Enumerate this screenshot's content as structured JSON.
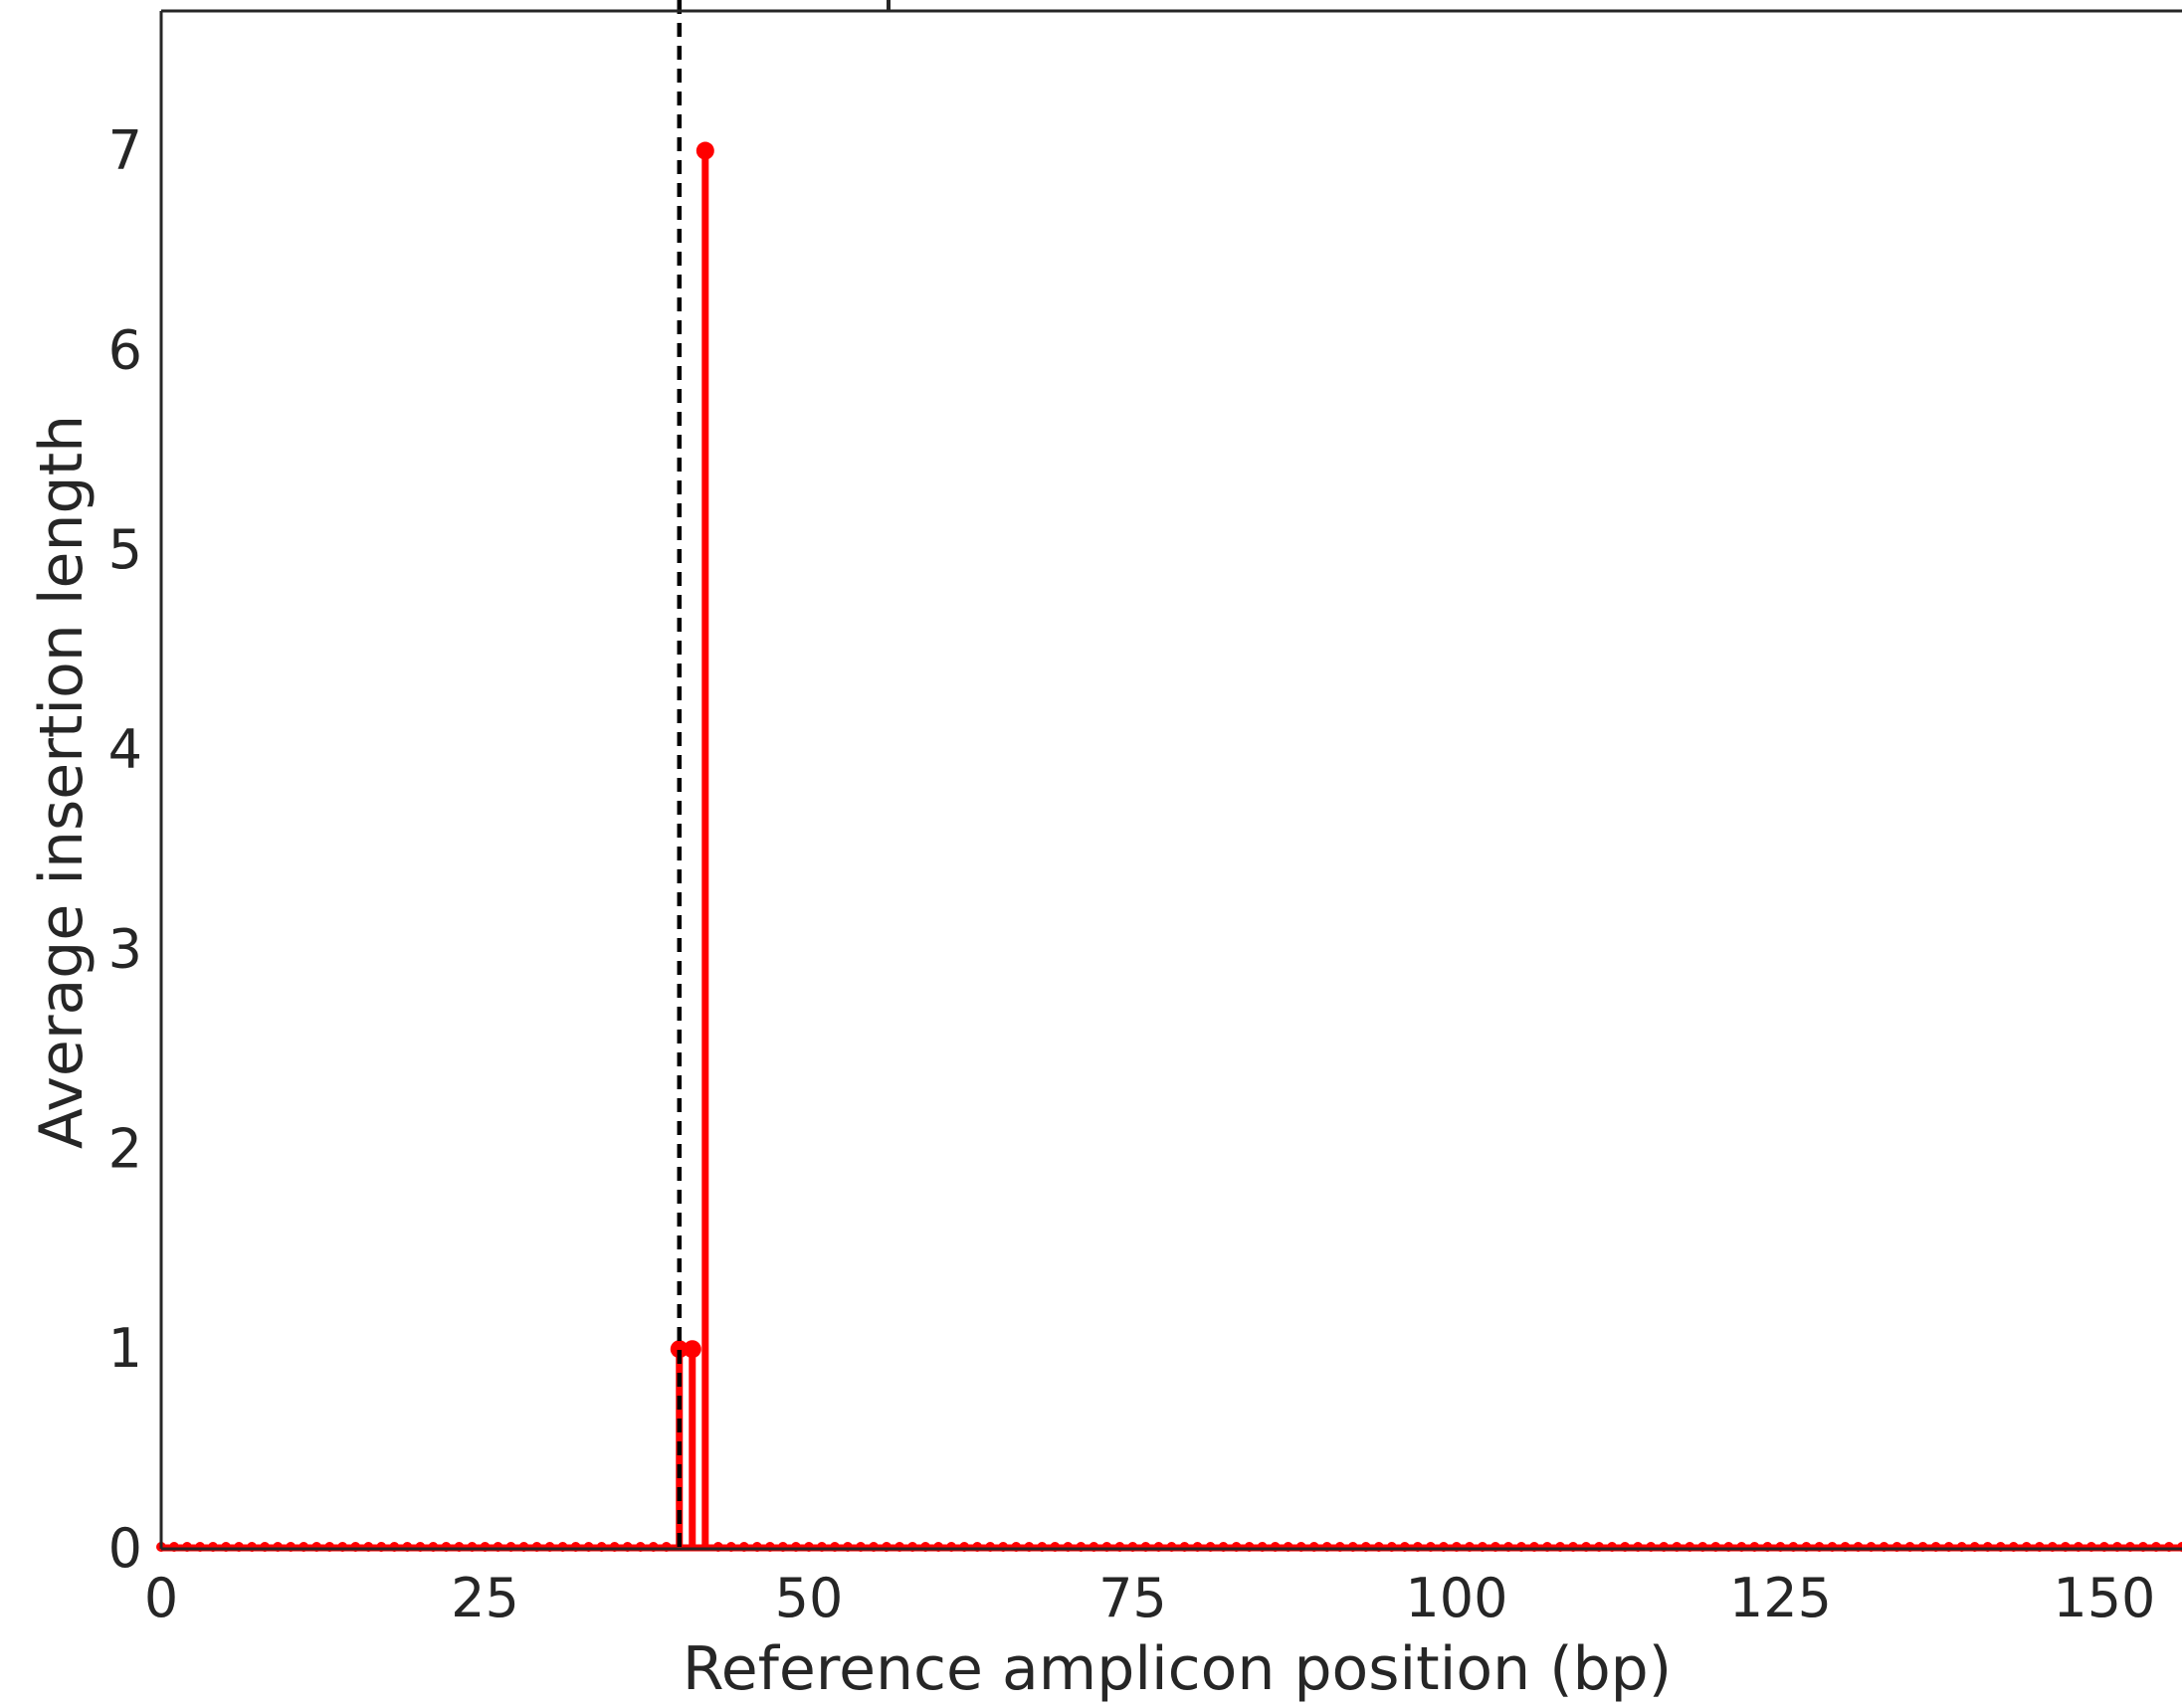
{
  "chart_data": {
    "type": "line",
    "title": "",
    "xlabel": "Reference amplicon position (bp)",
    "ylabel": "Average insertion length",
    "xlim": [
      0,
      156
    ],
    "ylim": [
      0,
      7.7
    ],
    "x_ticks": [
      0,
      25,
      50,
      75,
      100,
      125,
      150
    ],
    "y_ticks": [
      0,
      1,
      2,
      3,
      4,
      5,
      6,
      7
    ],
    "grid": false,
    "reference_line": {
      "x": 40,
      "style": "dashed",
      "color": "#000000"
    },
    "series": [
      {
        "x": [
          0,
          1,
          2,
          3,
          4,
          5,
          6,
          7,
          8,
          9,
          10,
          11,
          12,
          13,
          14,
          15,
          16,
          17,
          18,
          19,
          20,
          21,
          22,
          23,
          24,
          25,
          26,
          27,
          28,
          29,
          30,
          31,
          32,
          33,
          34,
          35,
          36,
          37,
          38,
          39,
          40,
          41,
          42,
          43,
          44,
          45,
          46,
          47,
          48,
          49,
          50,
          51,
          52,
          53,
          54,
          55,
          56,
          57,
          58,
          59,
          60,
          61,
          62,
          63,
          64,
          65,
          66,
          67,
          68,
          69,
          70,
          71,
          72,
          73,
          74,
          75,
          76,
          77,
          78,
          79,
          80,
          81,
          82,
          83,
          84,
          85,
          86,
          87,
          88,
          89,
          90,
          91,
          92,
          93,
          94,
          95,
          96,
          97,
          98,
          99,
          100,
          101,
          102,
          103,
          104,
          105,
          106,
          107,
          108,
          109,
          110,
          111,
          112,
          113,
          114,
          115,
          116,
          117,
          118,
          119,
          120,
          121,
          122,
          123,
          124,
          125,
          126,
          127,
          128,
          129,
          130,
          131,
          132,
          133,
          134,
          135,
          136,
          137,
          138,
          139,
          140,
          141,
          142,
          143,
          144,
          145,
          146,
          147,
          148,
          149,
          150,
          151,
          152,
          153,
          154,
          155,
          156
        ],
        "values": [
          0,
          0,
          0,
          0,
          0,
          0,
          0,
          0,
          0,
          0,
          0,
          0,
          0,
          0,
          0,
          0,
          0,
          0,
          0,
          0,
          0,
          0,
          0,
          0,
          0,
          0,
          0,
          0,
          0,
          0,
          0,
          0,
          0,
          0,
          0,
          0,
          0,
          0,
          0,
          0,
          1,
          1,
          7,
          0,
          0,
          0,
          0,
          0,
          0,
          0,
          0,
          0,
          0,
          0,
          0,
          0,
          0,
          0,
          0,
          0,
          0,
          0,
          0,
          0,
          0,
          0,
          0,
          0,
          0,
          0,
          0,
          0,
          0,
          0,
          0,
          0,
          0,
          0,
          0,
          0,
          0,
          0,
          0,
          0,
          0,
          0,
          0,
          0,
          0,
          0,
          0,
          0,
          0,
          0,
          0,
          0,
          0,
          0,
          0,
          0,
          0,
          0,
          0,
          0,
          0,
          0,
          0,
          0,
          0,
          0,
          0,
          0,
          0,
          0,
          0,
          0,
          0,
          0,
          0,
          0,
          0,
          0,
          0,
          0,
          0,
          0,
          0,
          0,
          0,
          0,
          0,
          0,
          0,
          0,
          0,
          0,
          0,
          0,
          0,
          0,
          0,
          0,
          0,
          0,
          0,
          0,
          0,
          0,
          0,
          0,
          0,
          0,
          0,
          0,
          0,
          0,
          0
        ],
        "color": "#ff0000",
        "style": "stem"
      }
    ]
  }
}
